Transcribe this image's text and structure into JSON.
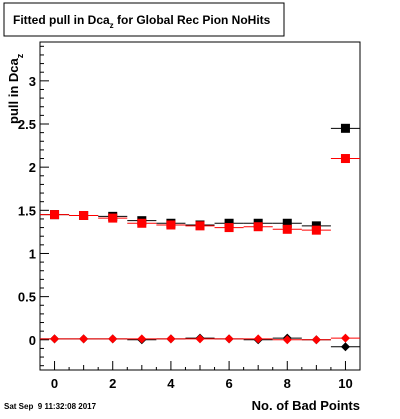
{
  "chart_data": {
    "type": "scatter",
    "title": "Fitted pull in Dca",
    "title_subscript": "z",
    "title_suffix": " for Global Rec Pion NoHits",
    "ylabel": "pull in Dca",
    "ylabel_subscript": "z",
    "xlabel": "No. of Bad Points",
    "xlim": [
      -0.5,
      10.5
    ],
    "ylim": [
      -0.35,
      3.45
    ],
    "x_ticks": [
      0,
      2,
      4,
      6,
      8,
      10
    ],
    "y_ticks": [
      0,
      0.5,
      1,
      1.5,
      2,
      2.5,
      3
    ],
    "x_tick_labels": [
      "0",
      "2",
      "4",
      "6",
      "8",
      "10"
    ],
    "y_tick_labels": [
      "0",
      "0.5",
      "1",
      "1.5",
      "2",
      "2.5",
      "3"
    ],
    "grid": false,
    "series": [
      {
        "color": "#000000",
        "marker": "square",
        "x": [
          0,
          1,
          2,
          3,
          4,
          5,
          6,
          7,
          8,
          9,
          10
        ],
        "y": [
          1.45,
          1.44,
          1.43,
          1.38,
          1.35,
          1.33,
          1.35,
          1.35,
          1.35,
          1.32,
          2.45
        ]
      },
      {
        "color": "#ff0000",
        "marker": "square",
        "x": [
          0,
          1,
          2,
          3,
          4,
          5,
          6,
          7,
          8,
          9,
          10
        ],
        "y": [
          1.45,
          1.44,
          1.41,
          1.35,
          1.33,
          1.32,
          1.3,
          1.31,
          1.28,
          1.27,
          2.1
        ]
      },
      {
        "color": "#000000",
        "marker": "diamond",
        "x": [
          0,
          1,
          2,
          3,
          4,
          5,
          6,
          7,
          8,
          9,
          10
        ],
        "y": [
          0.01,
          0.01,
          0.01,
          0.0,
          0.01,
          0.02,
          0.01,
          0.0,
          0.02,
          0.0,
          -0.08
        ]
      },
      {
        "color": "#ff0000",
        "marker": "diamond",
        "x": [
          0,
          1,
          2,
          3,
          4,
          5,
          6,
          7,
          8,
          9,
          10
        ],
        "y": [
          0.01,
          0.01,
          0.01,
          0.01,
          0.01,
          0.01,
          0.01,
          0.01,
          0.0,
          0.0,
          0.02
        ]
      }
    ]
  },
  "footer": {
    "timestamp": "Sat Sep  9 11:32:08 2017"
  }
}
